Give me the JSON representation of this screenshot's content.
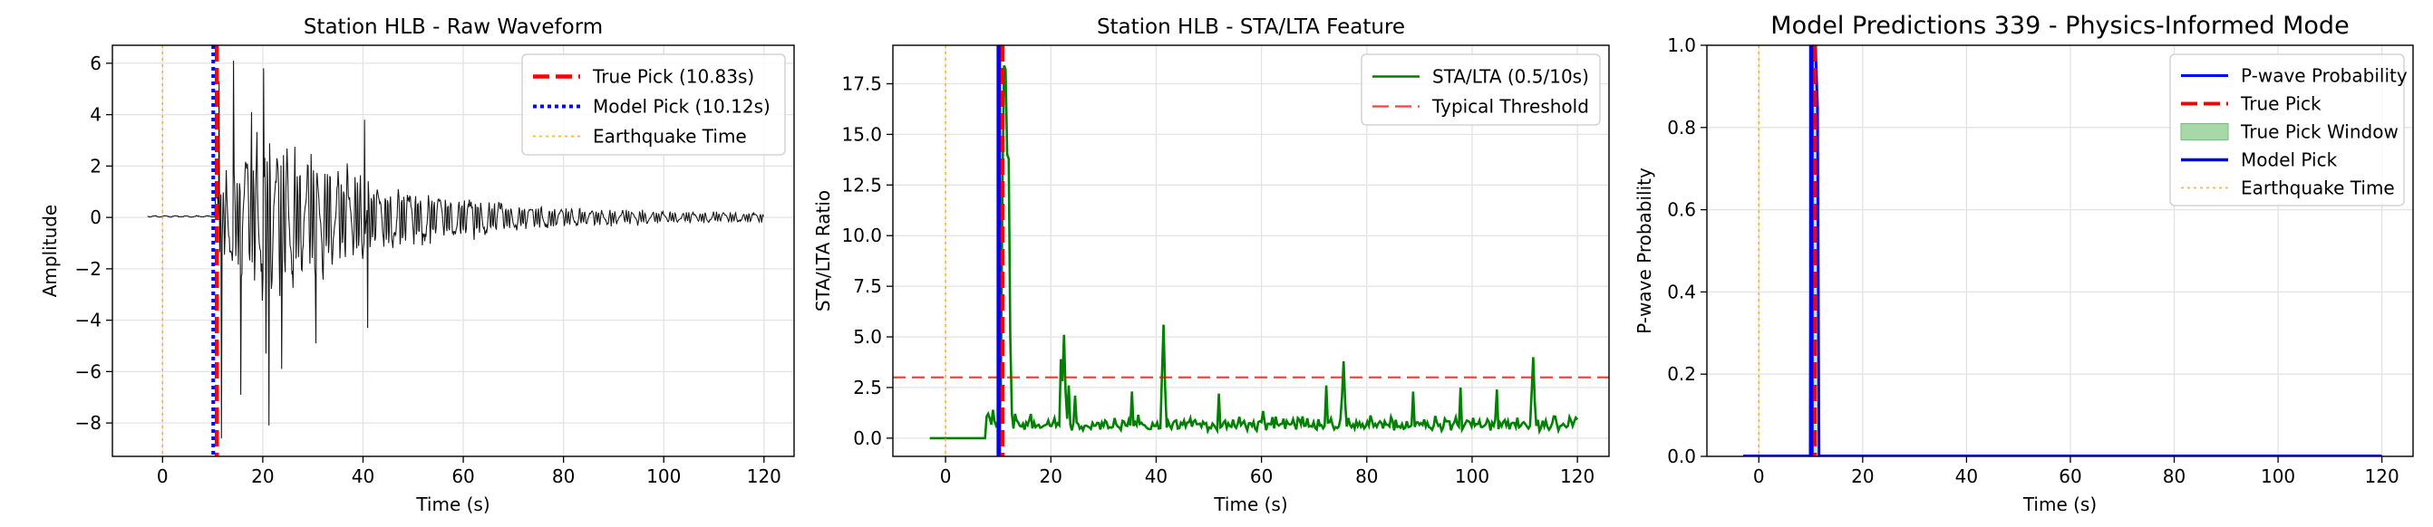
{
  "colors": {
    "true_pick": "#ff0000",
    "model_pick": "#0000ff",
    "quake": "#ffa500",
    "waveform": "#000000",
    "stalta": "#008000",
    "threshold": "#ff0000",
    "pwave": "#0000ff",
    "window_fill": "#a8d8a8"
  },
  "chart_data": [
    {
      "type": "line",
      "title": "Station HLB - Raw Waveform",
      "xlabel": "Time (s)",
      "ylabel": "Amplitude",
      "xlim": [
        -10,
        126
      ],
      "ylim": [
        -9.3,
        6.7
      ],
      "xticks": [
        0,
        20,
        40,
        60,
        80,
        100,
        120
      ],
      "yticks": [
        -8,
        -6,
        -4,
        -2,
        0,
        2,
        4,
        6
      ],
      "grid": true,
      "legend_position": "top-right",
      "series": [
        {
          "name": "True Pick (10.83s)",
          "kind": "vline",
          "x": 10.83,
          "style": "dashed"
        },
        {
          "name": "Model Pick (10.12s)",
          "kind": "vline",
          "x": 10.12,
          "style": "dotted"
        },
        {
          "name": "Earthquake Time",
          "kind": "vline",
          "x": 0,
          "style": "dotted-thin"
        }
      ],
      "waveform": {
        "t_start": -3,
        "t_end": 120,
        "onset": 10.5,
        "peak_max": 5.9,
        "peak_min": -8.1,
        "peak_time": 21,
        "tail_amplitude": 0.15
      }
    },
    {
      "type": "line",
      "title": "Station HLB - STA/LTA Feature",
      "xlabel": "Time (s)",
      "ylabel": "STA/LTA Ratio",
      "xlim": [
        -10,
        126
      ],
      "ylim": [
        -0.9,
        19.4
      ],
      "xticks": [
        0,
        20,
        40,
        60,
        80,
        100,
        120
      ],
      "yticks": [
        0.0,
        2.5,
        5.0,
        7.5,
        10.0,
        12.5,
        15.0,
        17.5
      ],
      "ytick_labels": [
        "0.0",
        "2.5",
        "5.0",
        "7.5",
        "10.0",
        "12.5",
        "15.0",
        "17.5"
      ],
      "grid": true,
      "legend_position": "top-right",
      "series": [
        {
          "name": "STA/LTA (0.5/10s)",
          "kind": "line"
        },
        {
          "name": "Typical Threshold",
          "kind": "hline",
          "y": 3.0,
          "style": "dashed"
        }
      ],
      "vlines": [
        {
          "x": 10.83,
          "style": "dashed",
          "role": "true_pick"
        },
        {
          "x": 10.12,
          "style": "solid",
          "role": "model_pick"
        },
        {
          "x": 0,
          "style": "dotted-thin",
          "role": "quake"
        }
      ],
      "stalta_peaks": [
        {
          "x": 11.2,
          "y": 18.4
        },
        {
          "x": 22.5,
          "y": 5.1
        },
        {
          "x": 41.5,
          "y": 5.6
        },
        {
          "x": 75.5,
          "y": 3.8
        },
        {
          "x": 111.5,
          "y": 4.0
        }
      ]
    },
    {
      "type": "line",
      "title": "Model Predictions 339 - Physics-Informed Mode",
      "xlabel": "Time (s)",
      "ylabel": "P-wave Probability",
      "xlim": [
        -10,
        126
      ],
      "ylim": [
        0.0,
        1.0
      ],
      "xticks": [
        0,
        20,
        40,
        60,
        80,
        100,
        120
      ],
      "yticks": [
        0.0,
        0.2,
        0.4,
        0.6,
        0.8,
        1.0
      ],
      "ytick_labels": [
        "0.0",
        "0.2",
        "0.4",
        "0.6",
        "0.8",
        "1.0"
      ],
      "grid": true,
      "legend_position": "top-right",
      "series": [
        {
          "name": "P-wave Probability",
          "kind": "line"
        },
        {
          "name": "True Pick",
          "kind": "vline",
          "x": 10.83,
          "style": "dashed"
        },
        {
          "name": "True Pick Window",
          "kind": "span",
          "x0": 10.33,
          "x1": 11.33
        },
        {
          "name": "Model Pick",
          "kind": "vline",
          "x": 10.12,
          "style": "solid"
        },
        {
          "name": "Earthquake Time",
          "kind": "vline",
          "x": 0,
          "style": "dotted-thin"
        }
      ]
    }
  ]
}
